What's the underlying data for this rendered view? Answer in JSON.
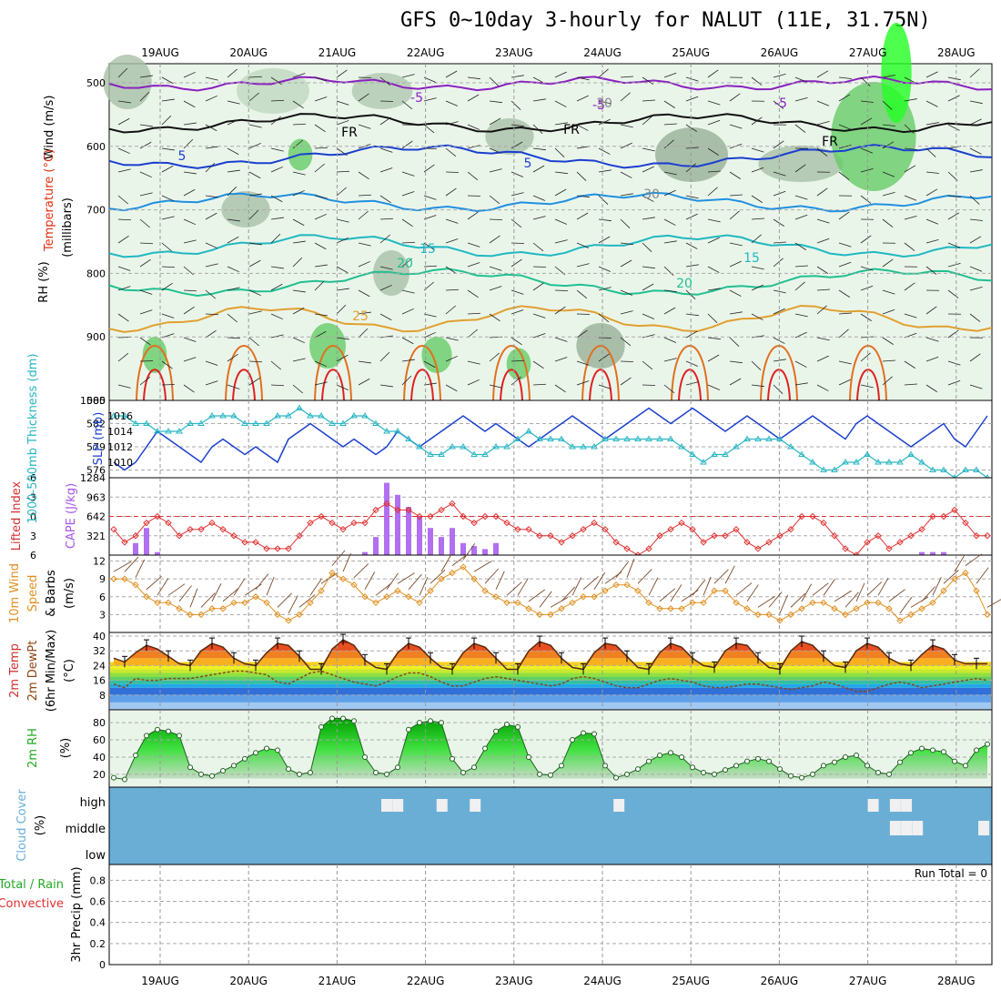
{
  "title": "GFS 0~10day 3-hourly for NALUT (11E, 31.75N)",
  "dates": [
    "19AUG",
    "20AUG",
    "21AUG",
    "22AUG",
    "23AUG",
    "24AUG",
    "25AUG",
    "26AUG",
    "27AUG",
    "28AUG"
  ],
  "colors": {
    "rh_light": "#e8f4e8",
    "rh_mid": "#a8c8a8",
    "rh_dark": "#8fae8f",
    "rh_green": "#33cc33",
    "rh_bright": "#00ff00",
    "cloud": "#6aaed6",
    "temp_hot": "#e03010",
    "dew": "#8b4513"
  },
  "panels": {
    "upper": {
      "ylabel_wind": "Wind (m/s)",
      "ylabel_temp": "Temperature (°C)",
      "ylabel_rh": "RH (%)",
      "ylabel_units": "(millibars)",
      "yticks": [
        "500",
        "600",
        "700",
        "800",
        "900",
        "1000"
      ],
      "contour_labels": [
        "-5",
        "-5",
        "-5",
        "5",
        "5",
        "15",
        "15",
        "20",
        "20",
        "25",
        "30",
        "30",
        "FR",
        "FR",
        "FR"
      ]
    },
    "thickness": {
      "ylabel_left": "1000-500mb Thickness (dm)",
      "ylabel_right": "SLP (mb)",
      "yticks_left": [
        "585",
        "582",
        "579",
        "576"
      ],
      "yticks_right": [
        "1016",
        "1014",
        "1012",
        "1010"
      ]
    },
    "cape": {
      "ylabel_left": "Lifted Index",
      "ylabel_right": "CAPE (J/kg)",
      "yticks_left": [
        "-6",
        "-3",
        "0",
        "3",
        "6"
      ],
      "yticks_right": [
        "1284",
        "963",
        "642",
        "321"
      ]
    },
    "wind": {
      "ylabel1": "10m Wind",
      "ylabel2": "Speed",
      "ylabel3": "& Barbs",
      "ylabel_units": "(m/s)",
      "yticks": [
        "12",
        "9",
        "6",
        "3"
      ]
    },
    "temp": {
      "ylabel1": "2m Temp",
      "ylabel2": "2m DewPt",
      "ylabel3": "(6hr Min/Max)",
      "ylabel_units": "(°C)",
      "yticks": [
        "40",
        "32",
        "24",
        "16",
        "8"
      ]
    },
    "rh": {
      "ylabel": "2m RH",
      "ylabel_units": "(%)",
      "yticks": [
        "80",
        "60",
        "40",
        "20"
      ]
    },
    "cloud": {
      "ylabel": "Cloud Cover",
      "ylabel_units": "(%)",
      "yticks": [
        "high",
        "middle",
        "low"
      ]
    },
    "precip": {
      "ylabel1": "Total / Rain",
      "ylabel2": "Convective",
      "ylabel_units": "3hr Precip (mm)",
      "yticks": [
        "0.8",
        "0.6",
        "0.4",
        "0.2",
        "0"
      ],
      "run_total": "Run Total = 0"
    }
  },
  "chart_data": [
    {
      "type": "line",
      "title": "1000-500mb Thickness (dm) / SLP (mb)",
      "series": [
        {
          "name": "SLP (mb)",
          "axis": "right",
          "values": [
            1010,
            1009,
            1010,
            1012,
            1014,
            1013,
            1012,
            1011,
            1010,
            1012,
            1013,
            1012,
            1011,
            1012,
            1011,
            1010,
            1013,
            1014,
            1015,
            1014,
            1013,
            1012,
            1013,
            1012,
            1011,
            1012,
            1014,
            1013,
            1012,
            1013,
            1014,
            1015,
            1016,
            1015,
            1014,
            1015,
            1014,
            1013,
            1012,
            1013,
            1014,
            1015,
            1016,
            1015,
            1014,
            1013,
            1014,
            1015,
            1016,
            1017,
            1016,
            1015,
            1016,
            1017,
            1016,
            1015,
            1014,
            1015,
            1016,
            1015,
            1014,
            1013,
            1014,
            1015,
            1016,
            1015,
            1014,
            1013,
            1015,
            1016,
            1015,
            1014,
            1013,
            1012,
            1013,
            1014,
            1015,
            1013,
            1012,
            1014,
            1016
          ]
        },
        {
          "name": "1000-500mb Thickness (dm)",
          "axis": "left",
          "values": [
            583,
            583,
            582,
            582,
            581,
            581,
            581,
            582,
            582,
            583,
            583,
            583,
            582,
            582,
            582,
            583,
            583,
            584,
            583,
            583,
            582,
            582,
            583,
            583,
            582,
            581,
            581,
            580,
            579,
            578,
            578,
            579,
            579,
            578,
            578,
            579,
            579,
            580,
            581,
            580,
            580,
            580,
            579,
            579,
            579,
            580,
            580,
            580,
            580,
            580,
            580,
            580,
            579,
            578,
            577,
            578,
            578,
            579,
            580,
            580,
            580,
            580,
            579,
            578,
            577,
            576,
            576,
            577,
            577,
            578,
            577,
            577,
            577,
            578,
            577,
            576,
            576,
            575,
            576,
            576,
            575
          ]
        }
      ]
    },
    {
      "type": "bar",
      "title": "CAPE (J/kg) / Lifted Index",
      "cape_values": [
        0,
        0,
        200,
        450,
        50,
        0,
        0,
        0,
        0,
        0,
        0,
        0,
        0,
        0,
        0,
        0,
        0,
        0,
        0,
        0,
        0,
        0,
        0,
        50,
        300,
        1200,
        1000,
        800,
        650,
        450,
        300,
        450,
        200,
        150,
        100,
        200,
        0,
        0,
        0,
        0,
        0,
        0,
        0,
        0,
        0,
        0,
        0,
        0,
        0,
        0,
        0,
        0,
        0,
        0,
        0,
        0,
        0,
        0,
        0,
        0,
        0,
        0,
        0,
        0,
        0,
        0,
        0,
        0,
        0,
        0,
        0,
        0,
        0,
        0,
        50,
        50,
        50,
        0,
        0,
        0,
        0
      ],
      "lifted_index": [
        2,
        4,
        3,
        1,
        0,
        1,
        3,
        2,
        2,
        1,
        2,
        3,
        4,
        4,
        5,
        5,
        5,
        3,
        1,
        0,
        1,
        2,
        1,
        1,
        -1,
        -2,
        -1,
        -1,
        0,
        0,
        -1,
        -2,
        0,
        1,
        0,
        0,
        1,
        2,
        2,
        3,
        3,
        4,
        3,
        2,
        1,
        2,
        4,
        5,
        6,
        5,
        3,
        2,
        1,
        2,
        4,
        3,
        3,
        2,
        4,
        5,
        4,
        3,
        2,
        0,
        0,
        1,
        3,
        5,
        6,
        4,
        3,
        5,
        4,
        3,
        2,
        0,
        0,
        -1,
        1,
        3,
        3
      ]
    },
    {
      "type": "line",
      "title": "10m Wind Speed (m/s)",
      "values": [
        9,
        9,
        8,
        6,
        5,
        5,
        4,
        3,
        3,
        4,
        4,
        5,
        5,
        6,
        5,
        3,
        2,
        3,
        5,
        7,
        10,
        9,
        8,
        6,
        5,
        6,
        7,
        6,
        5,
        7,
        9,
        10,
        11,
        9,
        7,
        6,
        5,
        5,
        4,
        3,
        3,
        4,
        5,
        6,
        6,
        7,
        8,
        8,
        7,
        5,
        4,
        4,
        4,
        5,
        5,
        7,
        7,
        5,
        4,
        3,
        3,
        2,
        3,
        4,
        5,
        5,
        4,
        3,
        4,
        5,
        5,
        4,
        2,
        3,
        4,
        5,
        7,
        9,
        10,
        7,
        3
      ]
    },
    {
      "type": "area",
      "title": "2m Temp / 2m DewPt (°C)",
      "temp": [
        28,
        26,
        31,
        35,
        33,
        29,
        25,
        24,
        32,
        36,
        34,
        28,
        25,
        24,
        31,
        36,
        35,
        29,
        22,
        22,
        33,
        38,
        35,
        27,
        23,
        22,
        31,
        36,
        34,
        28,
        23,
        22,
        31,
        36,
        34,
        28,
        22,
        22,
        32,
        37,
        35,
        28,
        23,
        22,
        31,
        36,
        35,
        29,
        23,
        22,
        31,
        36,
        34,
        28,
        24,
        23,
        32,
        36,
        35,
        28,
        23,
        22,
        32,
        37,
        35,
        29,
        24,
        23,
        32,
        36,
        34,
        28,
        25,
        24,
        30,
        35,
        33,
        27,
        25,
        25,
        25
      ],
      "dewpt": [
        14,
        12,
        17,
        16,
        16,
        17,
        17,
        17,
        18,
        19,
        20,
        21,
        21,
        20,
        19,
        15,
        14,
        17,
        20,
        21,
        19,
        17,
        15,
        14,
        13,
        15,
        18,
        20,
        20,
        18,
        15,
        13,
        13,
        15,
        17,
        18,
        17,
        16,
        15,
        14,
        13,
        14,
        17,
        18,
        17,
        15,
        13,
        12,
        12,
        14,
        16,
        17,
        16,
        15,
        13,
        12,
        12,
        13,
        14,
        14,
        13,
        12,
        11,
        12,
        13,
        15,
        14,
        12,
        10,
        10,
        12,
        14,
        15,
        14,
        12,
        13,
        14,
        15,
        16,
        17,
        16
      ]
    },
    {
      "type": "line",
      "title": "2m RH (%)",
      "values": [
        16,
        14,
        42,
        65,
        72,
        70,
        65,
        28,
        20,
        18,
        24,
        30,
        38,
        45,
        50,
        48,
        26,
        20,
        22,
        75,
        85,
        85,
        82,
        40,
        22,
        20,
        28,
        72,
        80,
        82,
        80,
        38,
        22,
        28,
        50,
        70,
        78,
        75,
        40,
        20,
        19,
        30,
        60,
        68,
        67,
        30,
        16,
        20,
        26,
        35,
        42,
        45,
        40,
        28,
        22,
        20,
        25,
        30,
        35,
        38,
        35,
        26,
        18,
        16,
        20,
        30,
        34,
        40,
        42,
        30,
        22,
        20,
        34,
        45,
        50,
        48,
        46,
        35,
        30,
        48,
        55
      ]
    },
    {
      "type": "bar",
      "title": "Cloud Cover (%)",
      "high_cells": [
        "21AUG+12",
        "21AUG+15",
        "22AUG+3",
        "22AUG+12",
        "24AUG+3",
        "27AUG+0",
        "27AUG+6",
        "27AUG+9"
      ],
      "middle_cells": [
        "27AUG+6",
        "27AUG+9",
        "27AUG+12",
        "28AUG+6"
      ]
    },
    {
      "type": "bar",
      "title": "3hr Precip (mm)",
      "values": [
        0
      ],
      "ylim": [
        0,
        1
      ]
    }
  ]
}
